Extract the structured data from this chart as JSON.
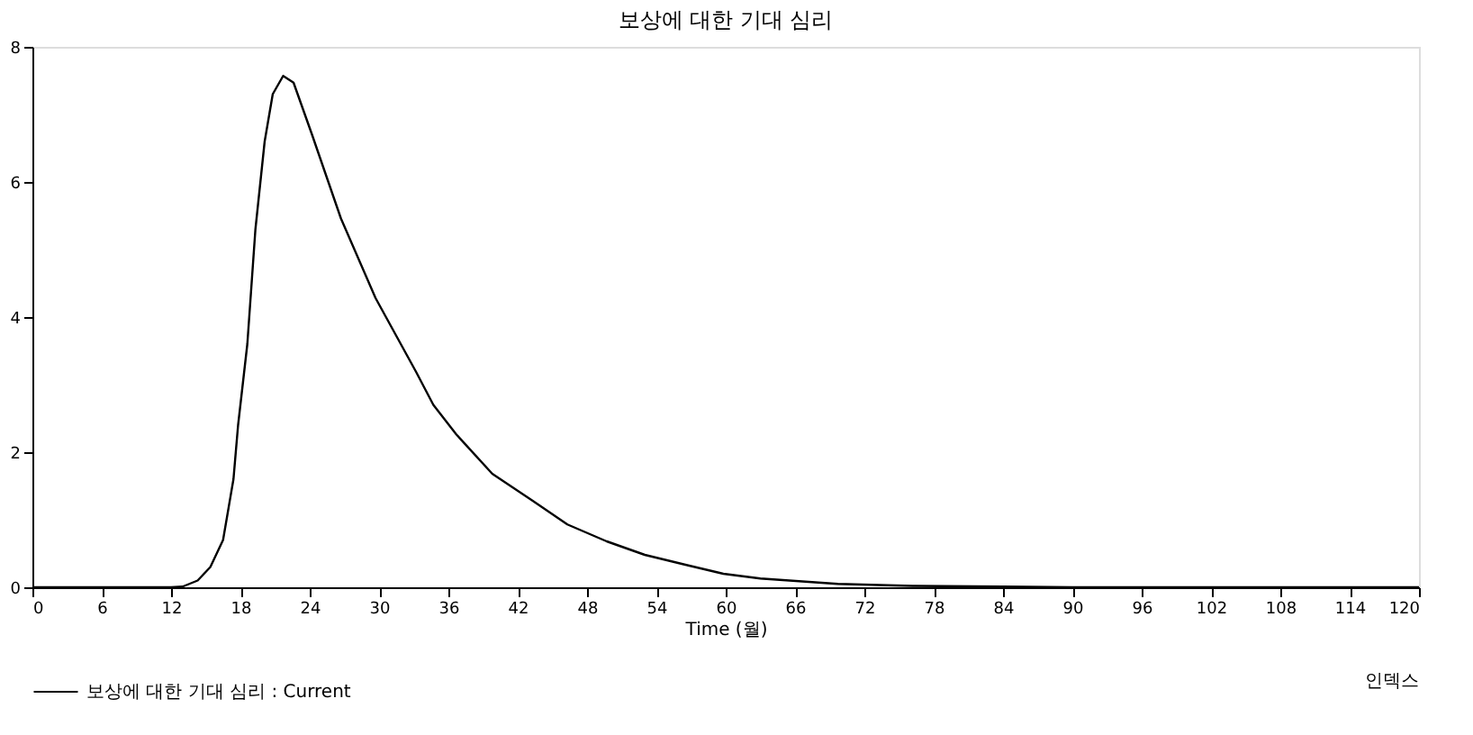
{
  "chart_data": {
    "type": "line",
    "title": "보상에 대한 기대 심리",
    "xlabel": "Time (월)",
    "x": [
      0,
      6,
      12,
      13,
      14.3,
      15.4,
      16.5,
      17.4,
      17.8,
      18.6,
      19.3,
      20.1,
      20.8,
      21.7,
      22.6,
      24.2,
      26.7,
      29.7,
      33.2,
      34.7,
      36.7,
      39.8,
      43.3,
      46.3,
      49.7,
      53,
      56.6,
      59.8,
      63,
      69.7,
      76.2,
      84,
      90,
      120
    ],
    "series": [
      {
        "name": "보상에 대한 기대 심리 : Current",
        "color": "#000000",
        "values": [
          0,
          0,
          0,
          0.01,
          0.1,
          0.3,
          0.7,
          1.6,
          2.4,
          3.6,
          5.3,
          6.6,
          7.3,
          7.57,
          7.47,
          6.7,
          5.46,
          4.28,
          3.19,
          2.7,
          2.26,
          1.68,
          1.28,
          0.93,
          0.68,
          0.48,
          0.33,
          0.2,
          0.13,
          0.05,
          0.02,
          0.01,
          0,
          0
        ]
      }
    ],
    "xlim": [
      0,
      120
    ],
    "xticks": [
      0,
      6,
      12,
      18,
      24,
      30,
      36,
      42,
      48,
      54,
      60,
      66,
      72,
      78,
      84,
      90,
      96,
      102,
      108,
      114,
      120
    ],
    "ylim": [
      0,
      8
    ],
    "yticks": [
      0,
      2,
      4,
      6,
      8
    ],
    "grid": false,
    "legend": "bottom left",
    "line_style": "solid",
    "annotations": [
      "인덱스"
    ]
  }
}
